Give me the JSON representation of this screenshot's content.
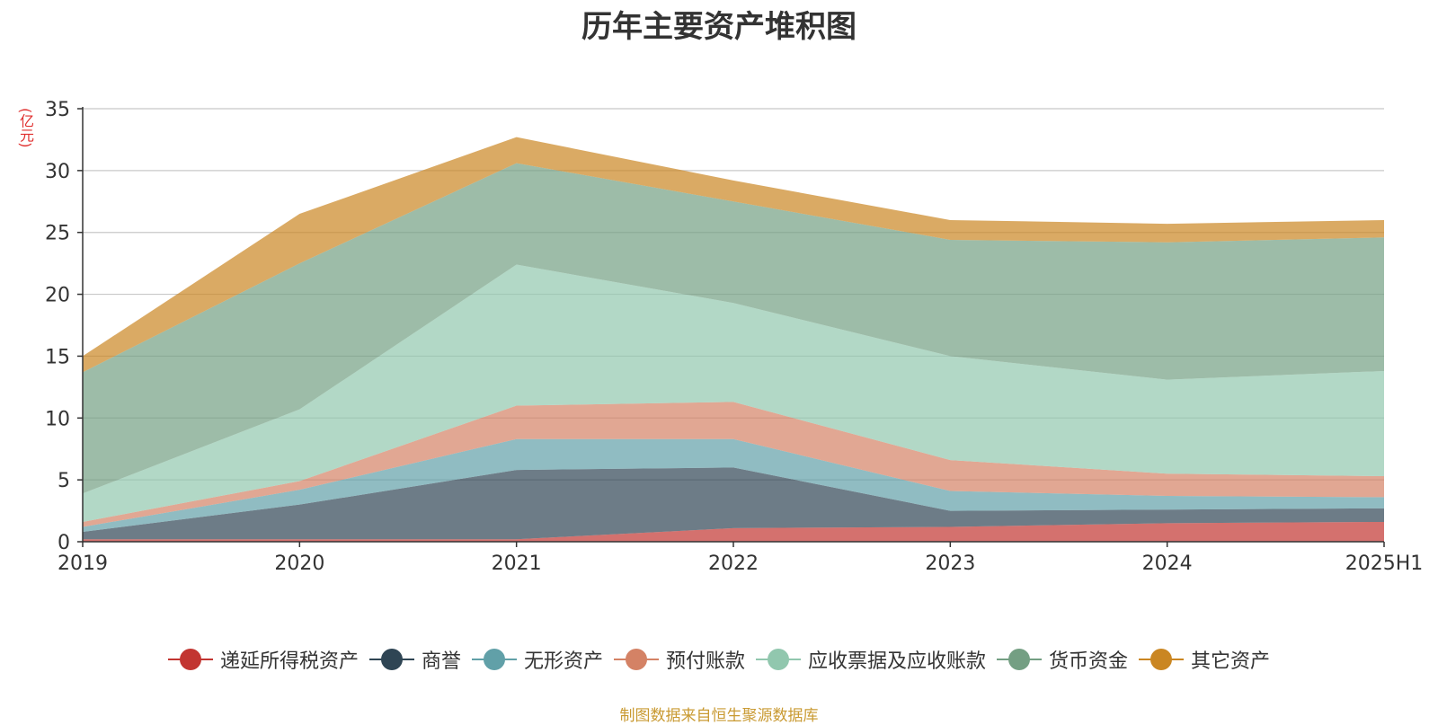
{
  "chart_data": {
    "type": "area",
    "stacked": true,
    "title": "历年主要资产堆积图",
    "unit_label": "(亿元)",
    "categories": [
      "2019",
      "2020",
      "2021",
      "2022",
      "2023",
      "2024",
      "2025H1"
    ],
    "ylim": [
      0,
      35
    ],
    "yticks": [
      0,
      5,
      10,
      15,
      20,
      25,
      30,
      35
    ],
    "grid": true,
    "legend_position": "bottom",
    "series": [
      {
        "name": "递延所得税资产",
        "color": "#c23531",
        "values": [
          0.2,
          0.2,
          0.2,
          1.1,
          1.2,
          1.5,
          1.6
        ]
      },
      {
        "name": "商誉",
        "color": "#2f4554",
        "values": [
          0.6,
          2.8,
          5.6,
          4.9,
          1.3,
          1.1,
          1.1
        ]
      },
      {
        "name": "无形资产",
        "color": "#61a0a8",
        "values": [
          0.4,
          1.2,
          2.5,
          2.3,
          1.6,
          1.1,
          0.9
        ]
      },
      {
        "name": "预付账款",
        "color": "#d48265",
        "values": [
          0.4,
          0.7,
          2.7,
          3.0,
          2.5,
          1.8,
          1.7
        ]
      },
      {
        "name": "应收票据及应收账款",
        "color": "#91c7ae",
        "values": [
          2.3,
          5.8,
          11.4,
          8.0,
          8.4,
          7.6,
          8.5
        ]
      },
      {
        "name": "货币资金",
        "color": "#749f83",
        "values": [
          9.8,
          11.8,
          8.2,
          8.2,
          9.4,
          11.1,
          10.8
        ]
      },
      {
        "name": "其它资产",
        "color": "#ca8622",
        "values": [
          1.3,
          4.0,
          2.1,
          1.7,
          1.6,
          1.5,
          1.4
        ]
      }
    ]
  },
  "footer": {
    "source": "制图数据来自恒生聚源数据库"
  }
}
